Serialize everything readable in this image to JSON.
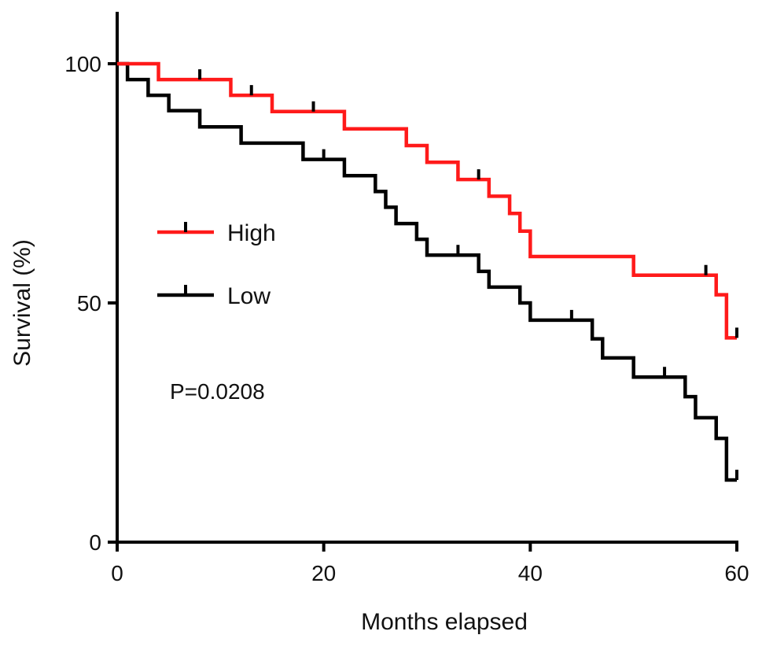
{
  "chart_data": {
    "type": "line",
    "subtype": "kaplan-meier step",
    "xlabel": "Months elapsed",
    "ylabel": "Survival (%)",
    "xlim": [
      0,
      60
    ],
    "ylim": [
      0,
      100
    ],
    "xticks": [
      0,
      20,
      40,
      60
    ],
    "yticks": [
      0,
      50,
      100
    ],
    "grid": false,
    "legend_position": "center-left",
    "annotation": "P=0.0208",
    "series": [
      {
        "name": "High",
        "color": "#ff1a1a",
        "steps": [
          [
            0,
            100
          ],
          [
            4,
            96.7
          ],
          [
            11,
            93.4
          ],
          [
            15,
            90
          ],
          [
            22,
            86.4
          ],
          [
            28,
            82.9
          ],
          [
            30,
            79.4
          ],
          [
            33,
            75.8
          ],
          [
            36,
            72.3
          ],
          [
            38,
            68.7
          ],
          [
            39,
            65
          ],
          [
            40,
            59.7
          ],
          [
            50,
            55.8
          ],
          [
            58,
            51.7
          ],
          [
            59,
            42.7
          ]
        ],
        "end": 60,
        "censored": [
          8,
          13,
          19,
          35,
          57,
          60
        ]
      },
      {
        "name": "Low",
        "color": "#000000",
        "steps": [
          [
            0,
            100
          ],
          [
            1,
            96.7
          ],
          [
            3,
            93.4
          ],
          [
            5,
            90.2
          ],
          [
            8,
            86.8
          ],
          [
            12,
            83.4
          ],
          [
            18,
            80
          ],
          [
            22,
            76.6
          ],
          [
            25,
            73.3
          ],
          [
            26,
            70
          ],
          [
            27,
            66.6
          ],
          [
            29,
            63.3
          ],
          [
            30,
            60
          ],
          [
            35,
            56.6
          ],
          [
            36,
            53.3
          ],
          [
            39,
            50
          ],
          [
            40,
            46.4
          ],
          [
            46,
            42.5
          ],
          [
            47,
            38.5
          ],
          [
            50,
            34.5
          ],
          [
            55,
            30.4
          ],
          [
            56,
            26
          ],
          [
            58,
            21.7
          ],
          [
            59,
            13
          ]
        ],
        "end": 60,
        "censored": [
          20,
          33,
          44,
          53,
          60
        ]
      }
    ]
  }
}
